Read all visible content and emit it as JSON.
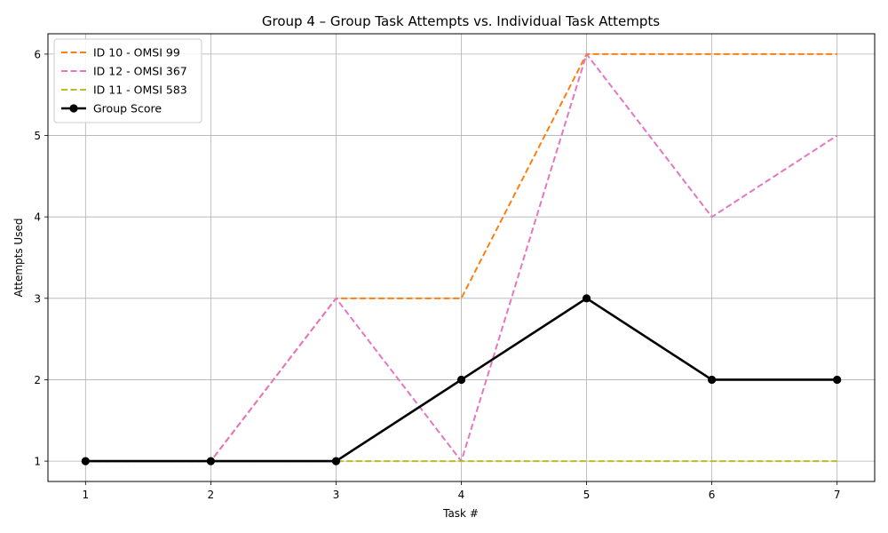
{
  "chart_data": {
    "type": "line",
    "title": "Group 4 – Group Task Attempts vs. Individual Task Attempts",
    "xlabel": "Task #",
    "ylabel": "Attempts Used",
    "x": [
      1,
      2,
      3,
      4,
      5,
      6,
      7
    ],
    "xlim": [
      0.7,
      7.3
    ],
    "ylim": [
      0.75,
      6.25
    ],
    "yticks": [
      1,
      2,
      3,
      4,
      5,
      6
    ],
    "grid": true,
    "legend_position": "top-left",
    "series": [
      {
        "name": "ID 10 - OMSI 99",
        "values": [
          1,
          1,
          3,
          3,
          6,
          6,
          6
        ],
        "color": "#ff7f0e",
        "style": "dashed",
        "markers": false
      },
      {
        "name": "ID 12 - OMSI 367",
        "values": [
          1,
          1,
          3,
          1,
          6,
          4,
          5
        ],
        "color": "#e377c2",
        "style": "dashed",
        "markers": false
      },
      {
        "name": "ID 11 - OMSI 583",
        "values": [
          1,
          1,
          1,
          1,
          1,
          1,
          1
        ],
        "color": "#bcbd22",
        "style": "dashed",
        "markers": false
      },
      {
        "name": "Group Score",
        "values": [
          1,
          1,
          1,
          2,
          3,
          2,
          2
        ],
        "color": "#000000",
        "style": "solid",
        "markers": true
      }
    ]
  }
}
